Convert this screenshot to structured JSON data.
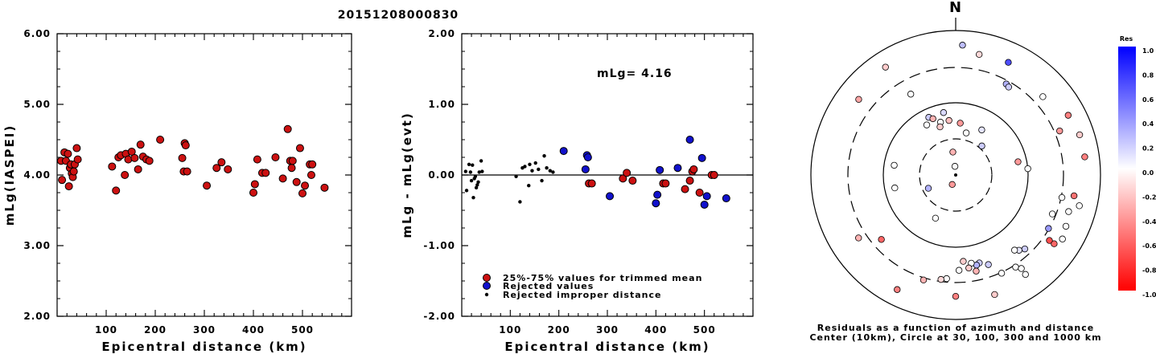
{
  "title": "20151208000830",
  "colors": {
    "trimmed": "#cc1111",
    "rejected": "#1111cc",
    "improper": "#000000"
  },
  "chart_data": [
    {
      "type": "scatter",
      "xlabel": "Epicentral distance (km)",
      "ylabel": "mLg(IASPEI)",
      "xlim": [
        0,
        600
      ],
      "ylim": [
        2,
        6
      ],
      "xticks": [
        "100",
        "200",
        "300",
        "400",
        "500"
      ],
      "yticks": [
        "2.00",
        "3.00",
        "4.00",
        "5.00",
        "6.00"
      ],
      "points": [
        [
          8,
          4.2
        ],
        [
          10,
          3.93
        ],
        [
          15,
          4.32
        ],
        [
          18,
          4.2
        ],
        [
          22,
          4.3
        ],
        [
          24,
          3.84
        ],
        [
          26,
          4.1
        ],
        [
          28,
          4.15
        ],
        [
          30,
          4.02
        ],
        [
          32,
          3.97
        ],
        [
          34,
          4.05
        ],
        [
          36,
          4.15
        ],
        [
          40,
          4.38
        ],
        [
          42,
          4.22
        ],
        [
          112,
          4.12
        ],
        [
          120,
          3.78
        ],
        [
          125,
          4.25
        ],
        [
          130,
          4.28
        ],
        [
          138,
          4.0
        ],
        [
          140,
          4.3
        ],
        [
          145,
          4.22
        ],
        [
          152,
          4.33
        ],
        [
          158,
          4.24
        ],
        [
          165,
          4.08
        ],
        [
          170,
          4.43
        ],
        [
          175,
          4.26
        ],
        [
          182,
          4.22
        ],
        [
          188,
          4.2
        ],
        [
          210,
          4.5
        ],
        [
          255,
          4.24
        ],
        [
          258,
          4.05
        ],
        [
          260,
          4.45
        ],
        [
          262,
          4.42
        ],
        [
          265,
          4.05
        ],
        [
          305,
          3.85
        ],
        [
          325,
          4.1
        ],
        [
          335,
          4.18
        ],
        [
          348,
          4.08
        ],
        [
          400,
          3.75
        ],
        [
          403,
          3.87
        ],
        [
          408,
          4.22
        ],
        [
          418,
          4.03
        ],
        [
          425,
          4.03
        ],
        [
          445,
          4.25
        ],
        [
          460,
          3.95
        ],
        [
          470,
          4.65
        ],
        [
          475,
          4.2
        ],
        [
          478,
          4.1
        ],
        [
          480,
          4.2
        ],
        [
          488,
          3.9
        ],
        [
          495,
          4.38
        ],
        [
          500,
          3.74
        ],
        [
          505,
          3.85
        ],
        [
          515,
          4.15
        ],
        [
          518,
          4.0
        ],
        [
          520,
          4.15
        ],
        [
          545,
          3.82
        ]
      ]
    },
    {
      "type": "scatter",
      "xlabel": "Epicentral distance (km)",
      "ylabel": "mLg - mLg(evt)",
      "xlim": [
        0,
        600
      ],
      "ylim": [
        -2,
        2
      ],
      "xticks": [
        "100",
        "200",
        "300",
        "400",
        "500"
      ],
      "yticks": [
        "-2.00",
        "-1.00",
        "0.00",
        "1.00",
        "2.00"
      ],
      "annotation": "mLg= 4.16",
      "legend": [
        {
          "kind": "trimmed",
          "label": "25%-75% values for trimmed mean"
        },
        {
          "kind": "rejected",
          "label": "Rejected values"
        },
        {
          "kind": "improper",
          "label": "Rejected improper distance"
        }
      ],
      "trimmed": [
        [
          262,
          -0.12
        ],
        [
          268,
          -0.12
        ],
        [
          332,
          -0.05
        ],
        [
          340,
          0.03
        ],
        [
          352,
          -0.08
        ],
        [
          415,
          -0.12
        ],
        [
          420,
          -0.12
        ],
        [
          460,
          -0.2
        ],
        [
          470,
          -0.08
        ],
        [
          475,
          0.05
        ],
        [
          478,
          0.08
        ],
        [
          490,
          -0.25
        ],
        [
          515,
          0.0
        ],
        [
          520,
          0.0
        ]
      ],
      "rejected": [
        [
          210,
          0.34
        ],
        [
          255,
          0.08
        ],
        [
          258,
          0.28
        ],
        [
          260,
          0.25
        ],
        [
          305,
          -0.3
        ],
        [
          400,
          -0.4
        ],
        [
          403,
          -0.28
        ],
        [
          408,
          0.07
        ],
        [
          445,
          0.1
        ],
        [
          470,
          0.5
        ],
        [
          495,
          0.24
        ],
        [
          500,
          -0.42
        ],
        [
          505,
          -0.3
        ],
        [
          545,
          -0.33
        ]
      ],
      "improper": [
        [
          8,
          0.05
        ],
        [
          10,
          -0.22
        ],
        [
          15,
          0.15
        ],
        [
          18,
          0.04
        ],
        [
          20,
          -0.08
        ],
        [
          22,
          0.14
        ],
        [
          24,
          -0.32
        ],
        [
          26,
          -0.05
        ],
        [
          28,
          -0.02
        ],
        [
          30,
          -0.18
        ],
        [
          32,
          -0.14
        ],
        [
          34,
          -0.1
        ],
        [
          36,
          0.04
        ],
        [
          40,
          0.2
        ],
        [
          42,
          0.05
        ],
        [
          112,
          -0.02
        ],
        [
          120,
          -0.38
        ],
        [
          125,
          0.1
        ],
        [
          130,
          0.12
        ],
        [
          138,
          -0.15
        ],
        [
          140,
          0.15
        ],
        [
          145,
          0.06
        ],
        [
          152,
          0.17
        ],
        [
          158,
          0.08
        ],
        [
          165,
          -0.08
        ],
        [
          170,
          0.27
        ],
        [
          175,
          0.1
        ],
        [
          182,
          0.06
        ],
        [
          188,
          0.04
        ]
      ]
    },
    {
      "type": "polar-scatter",
      "north_label": "N",
      "caption_1": "Residuals as a function of azimuth and distance",
      "caption_2": "Center (10km), Circle at 30, 100, 300 and 1000 km",
      "colorbar_title": "Res",
      "colorbar_ticks": [
        "1.0",
        "0.8",
        "0.6",
        "0.4",
        "0.2",
        "0.0",
        "-0.2",
        "-0.4",
        "-0.6",
        "-0.8",
        "-1.0"
      ],
      "points": [
        {
          "az": 3,
          "r": 0.9,
          "res": 0.25
        },
        {
          "az": 11,
          "r": 0.85,
          "res": -0.15
        },
        {
          "az": 25,
          "r": 0.86,
          "res": 0.7
        },
        {
          "az": 29,
          "r": 0.72,
          "res": 0.3
        },
        {
          "az": 31,
          "r": 0.71,
          "res": 0.2
        },
        {
          "az": 48,
          "r": 0.81,
          "res": 0.0
        },
        {
          "az": 62,
          "r": 0.88,
          "res": -0.5
        },
        {
          "az": 67,
          "r": 0.78,
          "res": -0.4
        },
        {
          "az": 72,
          "r": 0.9,
          "res": -0.2
        },
        {
          "az": 82,
          "r": 0.9,
          "res": -0.5
        },
        {
          "az": 85,
          "r": 0.5,
          "res": 0.0
        },
        {
          "az": 100,
          "r": 0.83,
          "res": -0.55
        },
        {
          "az": 102,
          "r": 0.75,
          "res": 0.0
        },
        {
          "az": 104,
          "r": 0.88,
          "res": 0.0
        },
        {
          "az": 108,
          "r": 0.82,
          "res": 0.0
        },
        {
          "az": 112,
          "r": 0.72,
          "res": 0.0
        },
        {
          "az": 115,
          "r": 0.84,
          "res": 0.0
        },
        {
          "az": 120,
          "r": 0.74,
          "res": 0.4
        },
        {
          "az": 121,
          "r": 0.86,
          "res": 0.0
        },
        {
          "az": 125,
          "r": 0.83,
          "res": -0.6
        },
        {
          "az": 125,
          "r": 0.79,
          "res": -0.7
        },
        {
          "az": 137,
          "r": 0.7,
          "res": 0.2
        },
        {
          "az": 140,
          "r": 0.68,
          "res": 0.1
        },
        {
          "az": 142,
          "r": 0.66,
          "res": 0.0
        },
        {
          "az": 145,
          "r": 0.84,
          "res": 0.0
        },
        {
          "az": 147,
          "r": 0.76,
          "res": 0.0
        },
        {
          "az": 145,
          "r": 0.79,
          "res": 0.0
        },
        {
          "az": 155,
          "r": 0.75,
          "res": 0.0
        },
        {
          "az": 160,
          "r": 0.66,
          "res": 0.2
        },
        {
          "az": 162,
          "r": 0.87,
          "res": -0.2
        },
        {
          "az": 165,
          "r": 0.63,
          "res": 0.2
        },
        {
          "az": 167,
          "r": 0.64,
          "res": 0.3
        },
        {
          "az": 168,
          "r": 0.68,
          "res": -0.3
        },
        {
          "az": 170,
          "r": 0.62,
          "res": 0.0
        },
        {
          "az": 172,
          "r": 0.65,
          "res": -0.2
        },
        {
          "az": 175,
          "r": 0.6,
          "res": -0.2
        },
        {
          "az": 178,
          "r": 0.66,
          "res": 0.0
        },
        {
          "az": 180,
          "r": 0.84,
          "res": -0.5
        },
        {
          "az": 185,
          "r": 0.72,
          "res": 0.0
        },
        {
          "az": 188,
          "r": 0.73,
          "res": -0.15
        },
        {
          "az": 197,
          "r": 0.76,
          "res": -0.3
        },
        {
          "az": 207,
          "r": 0.89,
          "res": -0.5
        },
        {
          "az": 205,
          "r": 0.33,
          "res": 0.0
        },
        {
          "az": 229,
          "r": 0.68,
          "res": -0.6
        },
        {
          "az": 237,
          "r": 0.8,
          "res": -0.3
        },
        {
          "az": 244,
          "r": 0.21,
          "res": 0.3
        },
        {
          "az": 258,
          "r": 0.43,
          "res": 0.0
        },
        {
          "az": 279,
          "r": 0.43,
          "res": 0.0
        },
        {
          "az": 308,
          "r": 0.85,
          "res": -0.35
        },
        {
          "az": 327,
          "r": 0.89,
          "res": -0.2
        },
        {
          "az": 331,
          "r": 0.64,
          "res": 0.0
        },
        {
          "az": 344,
          "r": 0.38,
          "res": 0.0
        },
        {
          "az": 349,
          "r": 0.44,
          "res": 0.15
        },
        {
          "az": 353,
          "r": 0.38,
          "res": -0.25
        },
        {
          "az": 5,
          "r": 0.36,
          "res": -0.4
        },
        {
          "az": 14,
          "r": 0.3,
          "res": 0.0
        },
        {
          "az": 42,
          "r": 0.27,
          "res": 0.2
        },
        {
          "az": 78,
          "r": 0.44,
          "res": -0.4
        },
        {
          "az": 353,
          "r": 0.16,
          "res": -0.3
        },
        {
          "az": 330,
          "r": 0.4,
          "res": 0.0
        },
        {
          "az": 335,
          "r": 0.44,
          "res": 0.2
        },
        {
          "az": 338,
          "r": 0.42,
          "res": -0.3
        },
        {
          "az": 342,
          "r": 0.35,
          "res": -0.2
        },
        {
          "az": 200,
          "r": 0.07,
          "res": -0.4
        },
        {
          "az": 355,
          "r": 0.06,
          "res": 0.0
        },
        {
          "az": 30,
          "r": 0.36,
          "res": 0.1
        }
      ]
    }
  ]
}
